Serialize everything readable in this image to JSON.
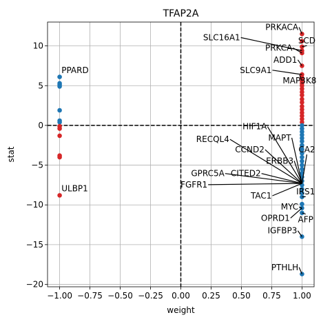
{
  "chart_data": {
    "type": "scatter",
    "title": "TFAP2A",
    "xlabel": "weight",
    "ylabel": "stat",
    "xlim": [
      -1.1,
      1.1
    ],
    "ylim": [
      -20.3,
      13.0
    ],
    "xticks": [
      -1.0,
      -0.75,
      -0.5,
      -0.25,
      0.0,
      0.25,
      0.5,
      0.75,
      1.0
    ],
    "xtick_labels": [
      "−1.00",
      "−0.75",
      "−0.50",
      "−0.25",
      "0.00",
      "0.25",
      "0.50",
      "0.75",
      "1.00"
    ],
    "yticks": [
      -20,
      -15,
      -10,
      -5,
      0,
      5,
      10
    ],
    "ytick_labels": [
      "−20",
      "−15",
      "−10",
      "−5",
      "0",
      "5",
      "10"
    ],
    "grid": true,
    "reference_lines": {
      "x": 0,
      "y": 0
    },
    "colors": {
      "positive": "#d62728",
      "negative": "#1f77b4"
    },
    "points": [
      {
        "x": -1.0,
        "y": 6.1,
        "sign": "negative"
      },
      {
        "x": -1.0,
        "y": 5.3,
        "sign": "negative"
      },
      {
        "x": -1.0,
        "y": 5.1,
        "sign": "negative"
      },
      {
        "x": -1.0,
        "y": 4.9,
        "sign": "negative"
      },
      {
        "x": -1.0,
        "y": 1.9,
        "sign": "negative"
      },
      {
        "x": -1.0,
        "y": 0.6,
        "sign": "negative"
      },
      {
        "x": -1.0,
        "y": 0.4,
        "sign": "negative"
      },
      {
        "x": -1.0,
        "y": -0.1,
        "sign": "positive"
      },
      {
        "x": -1.0,
        "y": -0.4,
        "sign": "positive"
      },
      {
        "x": -1.0,
        "y": -1.3,
        "sign": "positive"
      },
      {
        "x": -1.0,
        "y": -3.8,
        "sign": "positive"
      },
      {
        "x": -1.0,
        "y": -4.0,
        "sign": "positive"
      },
      {
        "x": -1.0,
        "y": -8.8,
        "sign": "positive"
      },
      {
        "x": 1.0,
        "y": 11.5,
        "sign": "positive"
      },
      {
        "x": 1.0,
        "y": 10.6,
        "sign": "positive"
      },
      {
        "x": 1.0,
        "y": 9.9,
        "sign": "positive"
      },
      {
        "x": 1.0,
        "y": 9.4,
        "sign": "positive"
      },
      {
        "x": 1.0,
        "y": 9.1,
        "sign": "positive"
      },
      {
        "x": 1.0,
        "y": 7.5,
        "sign": "positive"
      },
      {
        "x": 1.0,
        "y": 6.4,
        "sign": "positive"
      },
      {
        "x": 1.0,
        "y": 6.0,
        "sign": "positive"
      },
      {
        "x": 1.0,
        "y": 5.6,
        "sign": "positive"
      },
      {
        "x": 1.0,
        "y": 5.3,
        "sign": "positive"
      },
      {
        "x": 1.0,
        "y": 5.0,
        "sign": "positive"
      },
      {
        "x": 1.0,
        "y": 4.6,
        "sign": "positive"
      },
      {
        "x": 1.0,
        "y": 4.2,
        "sign": "positive"
      },
      {
        "x": 1.0,
        "y": 3.8,
        "sign": "positive"
      },
      {
        "x": 1.0,
        "y": 3.3,
        "sign": "positive"
      },
      {
        "x": 1.0,
        "y": 2.9,
        "sign": "positive"
      },
      {
        "x": 1.0,
        "y": 2.4,
        "sign": "positive"
      },
      {
        "x": 1.0,
        "y": 2.0,
        "sign": "positive"
      },
      {
        "x": 1.0,
        "y": 1.6,
        "sign": "positive"
      },
      {
        "x": 1.0,
        "y": 1.2,
        "sign": "positive"
      },
      {
        "x": 1.0,
        "y": 0.8,
        "sign": "positive"
      },
      {
        "x": 1.0,
        "y": 0.4,
        "sign": "positive"
      },
      {
        "x": 1.0,
        "y": 0.0,
        "sign": "negative"
      },
      {
        "x": 1.0,
        "y": -0.4,
        "sign": "negative"
      },
      {
        "x": 1.0,
        "y": -0.8,
        "sign": "negative"
      },
      {
        "x": 1.0,
        "y": -1.2,
        "sign": "negative"
      },
      {
        "x": 1.0,
        "y": -1.6,
        "sign": "negative"
      },
      {
        "x": 1.0,
        "y": -2.0,
        "sign": "negative"
      },
      {
        "x": 1.0,
        "y": -2.5,
        "sign": "negative"
      },
      {
        "x": 1.0,
        "y": -3.0,
        "sign": "negative"
      },
      {
        "x": 1.0,
        "y": -3.5,
        "sign": "negative"
      },
      {
        "x": 1.0,
        "y": -4.0,
        "sign": "negative"
      },
      {
        "x": 1.0,
        "y": -4.5,
        "sign": "negative"
      },
      {
        "x": 1.0,
        "y": -5.0,
        "sign": "negative"
      },
      {
        "x": 1.0,
        "y": -5.5,
        "sign": "negative"
      },
      {
        "x": 1.0,
        "y": -6.0,
        "sign": "negative"
      },
      {
        "x": 1.0,
        "y": -6.5,
        "sign": "negative"
      },
      {
        "x": 1.0,
        "y": -7.0,
        "sign": "negative"
      },
      {
        "x": 1.0,
        "y": -7.5,
        "sign": "negative"
      },
      {
        "x": 1.0,
        "y": -8.0,
        "sign": "negative"
      },
      {
        "x": 1.0,
        "y": -8.5,
        "sign": "negative"
      },
      {
        "x": 1.0,
        "y": -9.0,
        "sign": "negative"
      },
      {
        "x": 1.0,
        "y": -9.9,
        "sign": "negative"
      },
      {
        "x": 1.0,
        "y": -10.4,
        "sign": "negative"
      },
      {
        "x": 1.0,
        "y": -11.0,
        "sign": "negative"
      },
      {
        "x": 1.0,
        "y": -14.0,
        "sign": "negative"
      },
      {
        "x": 1.0,
        "y": -18.7,
        "sign": "negative"
      }
    ],
    "annotations": [
      {
        "text": "PPARD",
        "point": [
          -1.0,
          6.1
        ],
        "text_pos": [
          -0.985,
          6.6
        ],
        "anchor": "start",
        "leader": false
      },
      {
        "text": "ULBP1",
        "point": [
          -1.0,
          -8.8
        ],
        "text_pos": [
          -0.985,
          -8.3
        ],
        "anchor": "start",
        "leader": false
      },
      {
        "text": "PRKACA",
        "point": [
          1.0,
          11.5
        ],
        "text_pos": [
          0.97,
          12.0
        ],
        "anchor": "end",
        "leader": true
      },
      {
        "text": "SCD",
        "point": [
          1.0,
          9.9
        ],
        "text_pos": [
          1.04,
          10.3
        ],
        "anchor": "middle",
        "leader": true
      },
      {
        "text": "SLC16A1",
        "point": [
          1.0,
          9.4
        ],
        "text_pos": [
          0.49,
          10.7
        ],
        "anchor": "end",
        "leader": true
      },
      {
        "text": "PRKCA",
        "point": [
          1.0,
          9.1
        ],
        "text_pos": [
          0.92,
          9.4
        ],
        "anchor": "end",
        "leader": true
      },
      {
        "text": "ADD1",
        "point": [
          1.0,
          7.5
        ],
        "text_pos": [
          0.96,
          7.9
        ],
        "anchor": "end",
        "leader": true
      },
      {
        "text": "SLC9A1",
        "point": [
          1.0,
          6.4
        ],
        "text_pos": [
          0.75,
          6.6
        ],
        "anchor": "end",
        "leader": true
      },
      {
        "text": "MAP3K8",
        "point": [
          1.0,
          5.6
        ],
        "text_pos": [
          0.98,
          5.3
        ],
        "anchor": "middle",
        "leader": true
      },
      {
        "text": "HIF1A",
        "point": [
          1.0,
          -7.3
        ],
        "text_pos": [
          0.71,
          -0.5
        ],
        "anchor": "end",
        "leader": true
      },
      {
        "text": "MAPT",
        "point": [
          1.0,
          -7.3
        ],
        "text_pos": [
          0.91,
          -1.9
        ],
        "anchor": "end",
        "leader": true
      },
      {
        "text": "RECQL4",
        "point": [
          1.0,
          -7.3
        ],
        "text_pos": [
          0.4,
          -2.1
        ],
        "anchor": "end",
        "leader": true
      },
      {
        "text": "CCND2",
        "point": [
          1.0,
          -7.3
        ],
        "text_pos": [
          0.69,
          -3.4
        ],
        "anchor": "end",
        "leader": true
      },
      {
        "text": "CA2",
        "point": [
          1.0,
          -7.3
        ],
        "text_pos": [
          1.04,
          -3.4
        ],
        "anchor": "middle",
        "leader": true
      },
      {
        "text": "ERBB3",
        "point": [
          1.0,
          -7.3
        ],
        "text_pos": [
          0.93,
          -4.8
        ],
        "anchor": "end",
        "leader": true
      },
      {
        "text": "GPRC5A",
        "point": [
          1.0,
          -7.3
        ],
        "text_pos": [
          0.36,
          -6.4
        ],
        "anchor": "end",
        "leader": true
      },
      {
        "text": "CITED2",
        "point": [
          1.0,
          -7.3
        ],
        "text_pos": [
          0.66,
          -6.4
        ],
        "anchor": "end",
        "leader": true
      },
      {
        "text": "FGFR1",
        "point": [
          1.0,
          -7.3
        ],
        "text_pos": [
          0.22,
          -7.8
        ],
        "anchor": "end",
        "leader": true
      },
      {
        "text": "IRS1",
        "point": [
          1.0,
          -9.0
        ],
        "text_pos": [
          1.03,
          -8.7
        ],
        "anchor": "middle",
        "leader": true
      },
      {
        "text": "TAC1",
        "point": [
          1.0,
          -7.3
        ],
        "text_pos": [
          0.75,
          -9.2
        ],
        "anchor": "end",
        "leader": true
      },
      {
        "text": "MYC",
        "point": [
          1.0,
          -10.4
        ],
        "text_pos": [
          0.97,
          -10.6
        ],
        "anchor": "end",
        "leader": true
      },
      {
        "text": "AFP",
        "point": [
          1.0,
          -11.0
        ],
        "text_pos": [
          1.03,
          -12.2
        ],
        "anchor": "middle",
        "leader": true
      },
      {
        "text": "OPRD1",
        "point": [
          1.0,
          -10.4
        ],
        "text_pos": [
          0.9,
          -12.0
        ],
        "anchor": "end",
        "leader": true
      },
      {
        "text": "IGFBP3",
        "point": [
          1.0,
          -14.0
        ],
        "text_pos": [
          0.96,
          -13.6
        ],
        "anchor": "end",
        "leader": true
      },
      {
        "text": "PTHLH",
        "point": [
          1.0,
          -18.7
        ],
        "text_pos": [
          0.97,
          -18.2
        ],
        "anchor": "end",
        "leader": true
      }
    ]
  }
}
